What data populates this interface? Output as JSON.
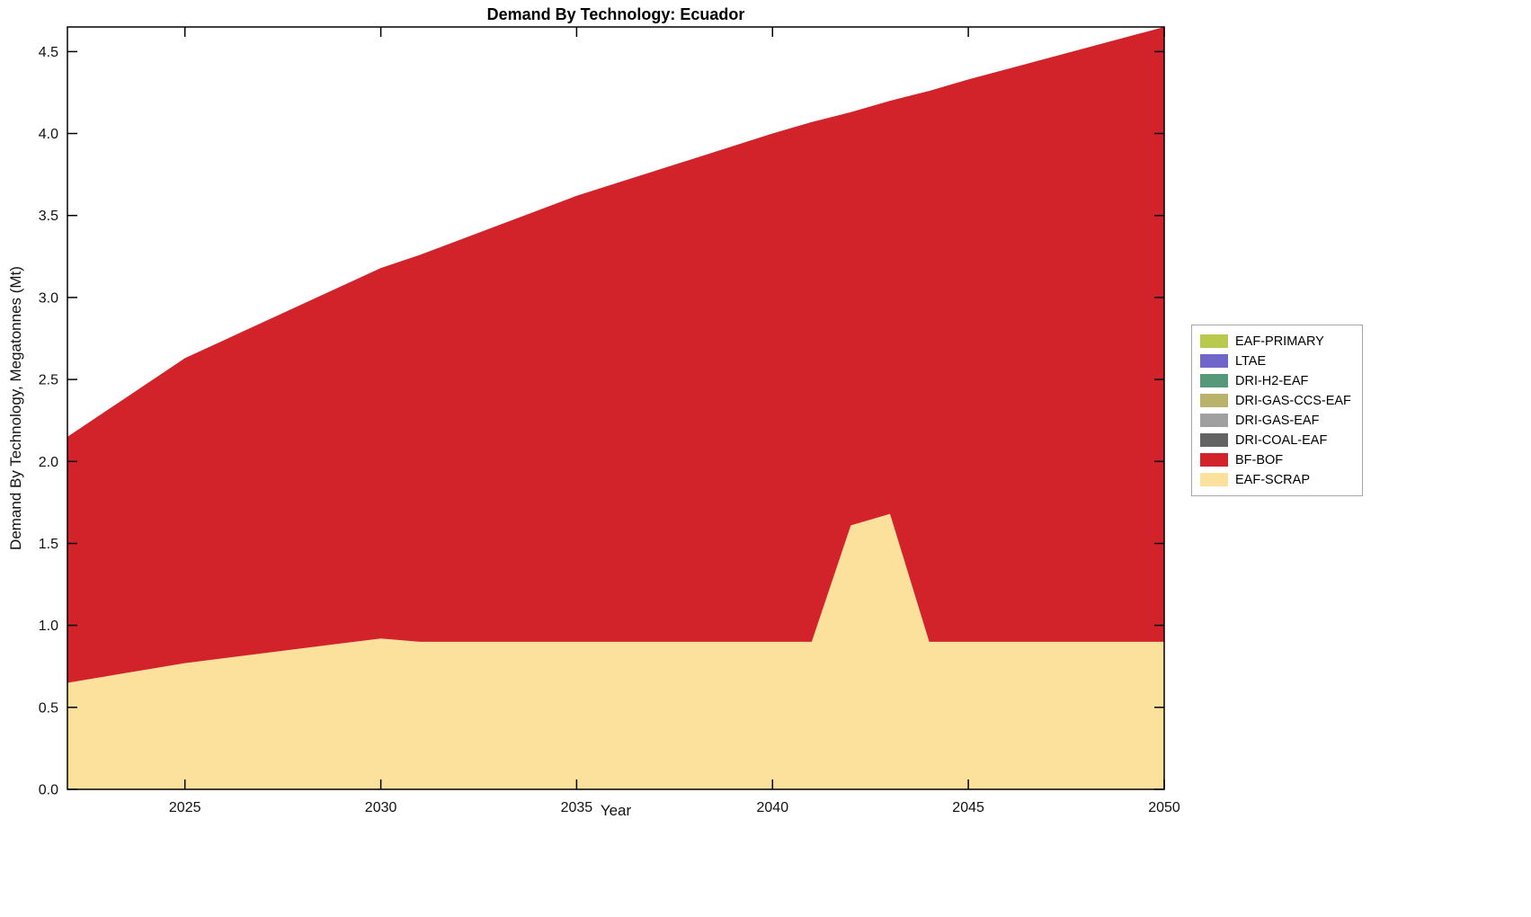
{
  "chart_data": {
    "type": "area",
    "stacked": true,
    "title": "Demand By Technology: Ecuador",
    "xlabel": "Year",
    "ylabel": "Demand By Technology, Megatonnes (Mt)",
    "xlim": [
      2022,
      2050
    ],
    "ylim": [
      0,
      4.65
    ],
    "x_ticks": [
      2025,
      2030,
      2035,
      2040,
      2045,
      2050
    ],
    "y_ticks": [
      0.0,
      0.5,
      1.0,
      1.5,
      2.0,
      2.5,
      3.0,
      3.5,
      4.0,
      4.5
    ],
    "grid": false,
    "legend_position": "right-outside",
    "x": [
      2022,
      2025,
      2030,
      2031,
      2035,
      2040,
      2041,
      2042,
      2043,
      2044,
      2045,
      2050
    ],
    "series": [
      {
        "name": "EAF-PRIMARY",
        "color": "#b8c94e",
        "values": [
          0,
          0,
          0,
          0,
          0,
          0,
          0,
          0,
          0,
          0,
          0,
          0
        ]
      },
      {
        "name": "LTAE",
        "color": "#7065c9",
        "values": [
          0,
          0,
          0,
          0,
          0,
          0,
          0,
          0,
          0,
          0,
          0,
          0
        ]
      },
      {
        "name": "DRI-H2-EAF",
        "color": "#56997a",
        "values": [
          0,
          0,
          0,
          0,
          0,
          0,
          0,
          0,
          0,
          0,
          0,
          0
        ]
      },
      {
        "name": "DRI-GAS-CCS-EAF",
        "color": "#b9b26a",
        "values": [
          0,
          0,
          0,
          0,
          0,
          0,
          0,
          0,
          0,
          0,
          0,
          0
        ]
      },
      {
        "name": "DRI-GAS-EAF",
        "color": "#a0a0a0",
        "values": [
          0,
          0,
          0,
          0,
          0,
          0,
          0,
          0,
          0,
          0,
          0,
          0
        ]
      },
      {
        "name": "DRI-COAL-EAF",
        "color": "#636363",
        "values": [
          0,
          0,
          0,
          0,
          0,
          0,
          0,
          0,
          0,
          0,
          0,
          0
        ]
      },
      {
        "name": "BF-BOF",
        "color": "#d2232a",
        "values": [
          1.5,
          1.86,
          2.26,
          2.36,
          2.72,
          3.1,
          3.17,
          2.52,
          2.52,
          3.36,
          3.43,
          3.75
        ]
      },
      {
        "name": "EAF-SCRAP",
        "color": "#fbe19b",
        "values": [
          0.65,
          0.77,
          0.92,
          0.9,
          0.9,
          0.9,
          0.9,
          1.61,
          1.68,
          0.9,
          0.9,
          0.9
        ]
      }
    ]
  }
}
